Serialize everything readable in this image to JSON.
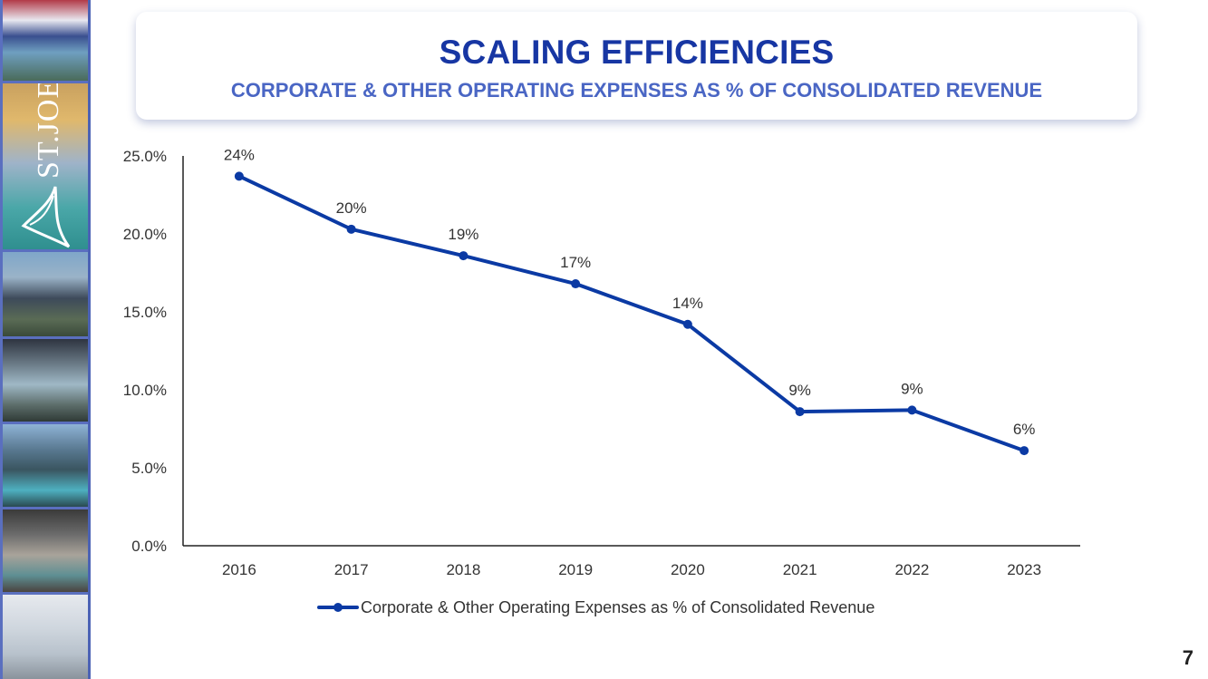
{
  "header": {
    "title": "SCALING EFFICIENCIES",
    "subtitle": "CORPORATE & OTHER OPERATING EXPENSES AS % OF CONSOLIDATED REVENUE"
  },
  "brand": {
    "logo_text": "ST.JOE",
    "accent": "#1736a3",
    "line_color": "#0b3aa4"
  },
  "chart_data": {
    "type": "line",
    "title": "",
    "xlabel": "",
    "ylabel": "",
    "categories": [
      "2016",
      "2017",
      "2018",
      "2019",
      "2020",
      "2021",
      "2022",
      "2023"
    ],
    "series": [
      {
        "name": "Corporate & Other Operating Expenses as % of Consolidated Revenue",
        "values": [
          23.7,
          20.3,
          18.6,
          16.8,
          14.2,
          8.6,
          8.7,
          6.1
        ],
        "labels": [
          "24%",
          "20%",
          "19%",
          "17%",
          "14%",
          "9%",
          "9%",
          "6%"
        ]
      }
    ],
    "ylim": [
      0,
      25
    ],
    "yticks": [
      0,
      5,
      10,
      15,
      20,
      25
    ],
    "ytick_labels": [
      "0.0%",
      "5.0%",
      "10.0%",
      "15.0%",
      "20.0%",
      "25.0%"
    ],
    "grid": false,
    "legend": "bottom"
  },
  "footer": {
    "page_number": "7"
  }
}
